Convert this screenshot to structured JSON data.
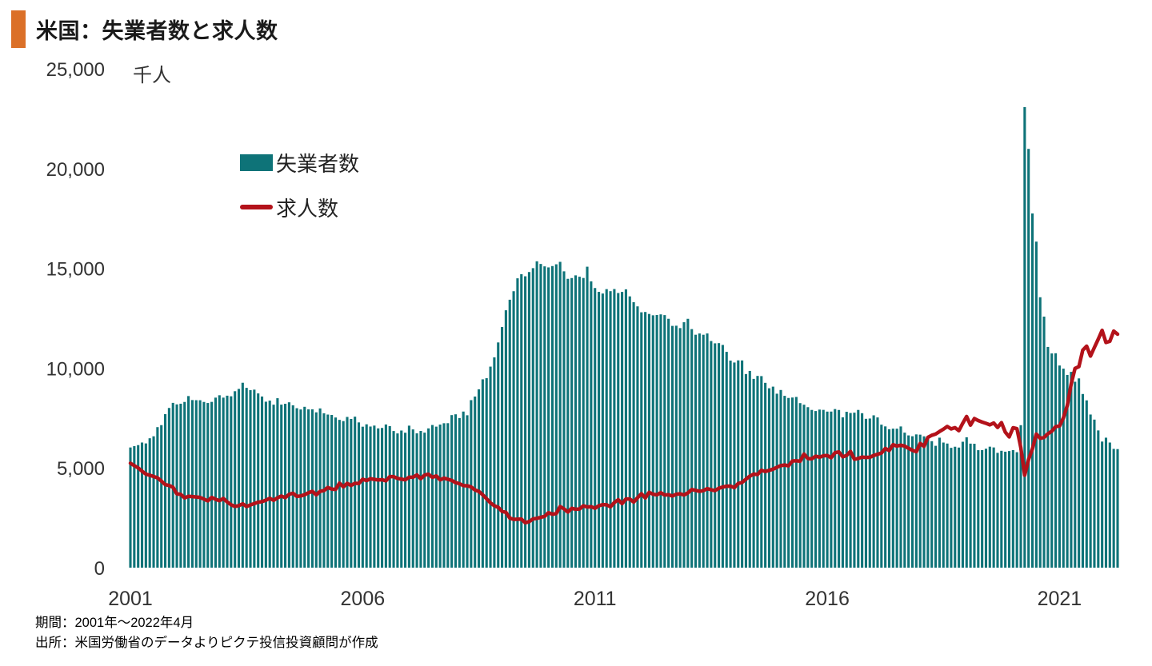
{
  "header": {
    "title": "米国：失業者数と求人数",
    "accent_color": "#db7028"
  },
  "axis": {
    "unit": "千人",
    "y_ticks": [
      0,
      5000,
      10000,
      15000,
      20000,
      25000
    ],
    "x_ticks": [
      2001,
      2006,
      2011,
      2016,
      2021
    ],
    "text_color": "#333333"
  },
  "legend": {
    "items": [
      {
        "label": "失業者数",
        "type": "bar",
        "color": "#0e7378"
      },
      {
        "label": "求人数",
        "type": "line",
        "color": "#b3121a"
      }
    ]
  },
  "footer": {
    "period_line": "期間：2001年～2022年4月",
    "source_line": "出所：米国労働省のデータよりピクテ投信投資顧問が作成"
  },
  "chart_data": {
    "type": "bar+line",
    "title": "米国：失業者数と求人数",
    "ylabel": "千人",
    "ylim": [
      0,
      25000
    ],
    "grid": false,
    "legend_position": "upper-left-inside",
    "x_domain": {
      "start": "2001-01",
      "end": "2022-04",
      "months": 256
    },
    "series": [
      {
        "name": "失業者数",
        "type": "bar",
        "color": "#0e7378",
        "values": [
          6023,
          6089,
          6141,
          6271,
          6226,
          6484,
          6583,
          7042,
          7142,
          7694,
          8003,
          8258,
          8182,
          8215,
          8304,
          8599,
          8399,
          8393,
          8390,
          8304,
          8251,
          8307,
          8520,
          8640,
          8520,
          8618,
          8588,
          8842,
          8957,
          9266,
          9011,
          8896,
          8921,
          8732,
          8576,
          8317,
          8370,
          8167,
          8491,
          8170,
          8212,
          8286,
          8136,
          7990,
          7927,
          8061,
          7932,
          7934,
          7784,
          7980,
          7737,
          7672,
          7651,
          7524,
          7406,
          7345,
          7553,
          7453,
          7566,
          7279,
          7064,
          7184,
          7072,
          7120,
          6980,
          7001,
          7175,
          7091,
          6847,
          6727,
          6872,
          6762,
          7116,
          6927,
          6731,
          6850,
          6766,
          6979,
          7149,
          7067,
          7170,
          7237,
          7240,
          7645,
          7685,
          7497,
          7822,
          7637,
          8395,
          8575,
          8937,
          9438,
          9494,
          10074,
          10538,
          11286,
          12058,
          12898,
          13426,
          13853,
          14499,
          14707,
          14601,
          14814,
          15009,
          15352,
          15219,
          15098,
          15046,
          15113,
          15202,
          15325,
          14849,
          14474,
          14512,
          14648,
          14579,
          14516,
          15081,
          14348,
          14013,
          13820,
          13737,
          13957,
          13855,
          13962,
          13763,
          13818,
          13948,
          13594,
          13302,
          13093,
          12797,
          12813,
          12713,
          12646,
          12660,
          12692,
          12656,
          12471,
          12115,
          12124,
          12005,
          12298,
          12470,
          11954,
          11672,
          11735,
          11671,
          11736,
          11357,
          11241,
          11251,
          11161,
          10814,
          10376,
          10280,
          10387,
          10384,
          9702,
          9859,
          9460,
          9608,
          9599,
          9262,
          8990,
          9071,
          8717,
          8903,
          8610,
          8504,
          8526,
          8555,
          8245,
          8166,
          8042,
          7904,
          7848,
          7921,
          7907,
          7820,
          7822,
          7947,
          7902,
          7532,
          7811,
          7751,
          7767,
          7904,
          7740,
          7459,
          7474,
          7634,
          7528,
          7165,
          7079,
          6938,
          6965,
          6964,
          7076,
          6766,
          6628,
          6586,
          6678,
          6665,
          6582,
          6558,
          6339,
          6106,
          6513,
          6269,
          6219,
          6004,
          6060,
          6018,
          6310,
          6535,
          6215,
          6209,
          5887,
          5893,
          5960,
          6063,
          6024,
          5753,
          5857,
          5811,
          5844,
          5892,
          5787,
          7140,
          23078,
          20985,
          17750,
          16338,
          13550,
          12580,
          11061,
          10735,
          10744,
          10130,
          9972,
          9658,
          9812,
          9316,
          9484,
          8702,
          8384,
          7674,
          7419,
          6877,
          6319,
          6513,
          6270,
          5952,
          5941
        ]
      },
      {
        "name": "求人数",
        "type": "line",
        "color": "#b3121a",
        "values": [
          5234,
          5112,
          4999,
          4835,
          4687,
          4629,
          4569,
          4501,
          4341,
          4162,
          4120,
          4029,
          3696,
          3675,
          3494,
          3577,
          3560,
          3542,
          3519,
          3436,
          3346,
          3520,
          3427,
          3357,
          3470,
          3290,
          3152,
          3069,
          3108,
          3200,
          3061,
          3143,
          3209,
          3278,
          3311,
          3379,
          3477,
          3376,
          3501,
          3588,
          3508,
          3675,
          3729,
          3570,
          3593,
          3654,
          3750,
          3826,
          3647,
          3823,
          3862,
          4021,
          3938,
          3920,
          4237,
          4049,
          4225,
          4117,
          4229,
          4215,
          4433,
          4364,
          4457,
          4423,
          4398,
          4409,
          4353,
          4562,
          4560,
          4475,
          4438,
          4400,
          4530,
          4531,
          4648,
          4455,
          4639,
          4683,
          4528,
          4598,
          4397,
          4487,
          4430,
          4371,
          4263,
          4206,
          4112,
          4103,
          4047,
          3891,
          3821,
          3654,
          3452,
          3249,
          3099,
          3026,
          2820,
          2772,
          2482,
          2418,
          2430,
          2434,
          2251,
          2305,
          2441,
          2471,
          2522,
          2572,
          2755,
          2675,
          2712,
          3065,
          2945,
          2787,
          2973,
          2927,
          2939,
          3100,
          3041,
          3057,
          2978,
          3102,
          3159,
          3152,
          3048,
          3263,
          3405,
          3210,
          3441,
          3442,
          3288,
          3503,
          3706,
          3493,
          3774,
          3681,
          3649,
          3757,
          3640,
          3655,
          3591,
          3680,
          3700,
          3640,
          3746,
          3916,
          3872,
          3824,
          3859,
          3959,
          3906,
          3861,
          3979,
          4042,
          4082,
          4087,
          4008,
          4219,
          4271,
          4434,
          4585,
          4689,
          4668,
          4878,
          4819,
          4875,
          4935,
          5028,
          5114,
          5144,
          5103,
          5344,
          5357,
          5331,
          5695,
          5467,
          5454,
          5585,
          5535,
          5607,
          5620,
          5506,
          5760,
          5800,
          5555,
          5623,
          5825,
          5432,
          5472,
          5541,
          5522,
          5532,
          5622,
          5681,
          5743,
          5973,
          5869,
          6164,
          6090,
          6140,
          6090,
          5986,
          5879,
          5809,
          6228,
          6078,
          6530,
          6633,
          6696,
          6822,
          6939,
          7077,
          6954,
          7016,
          6864,
          7238,
          7576,
          7142,
          7474,
          7372,
          7296,
          7233,
          7157,
          7250,
          7024,
          7266,
          6787,
          6552,
          7012,
          6965,
          6011,
          4630,
          5417,
          5954,
          6697,
          6480,
          6526,
          6710,
          6835,
          7068,
          7099,
          7508,
          8123,
          9193,
          9983,
          10073,
          10900,
          11098,
          10602,
          11033,
          11448,
          11892,
          11283,
          11344,
          11855,
          11700
        ]
      }
    ]
  }
}
